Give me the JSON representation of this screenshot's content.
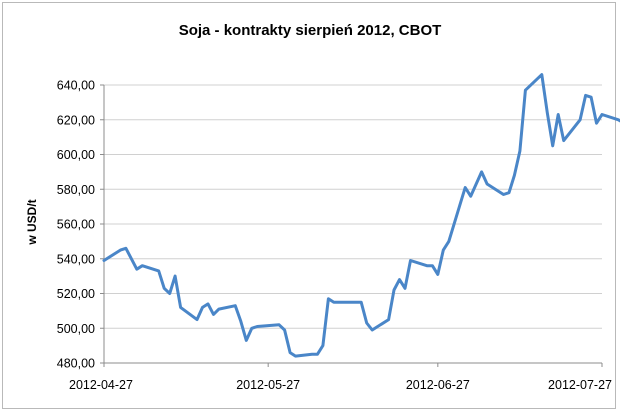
{
  "chart_data": {
    "type": "line",
    "title": "Soja - kontrakty sierpień 2012, CBOT",
    "xlabel": "",
    "ylabel": "w USD/t",
    "ylim": [
      480,
      640
    ],
    "yticks": [
      480,
      500,
      520,
      540,
      560,
      580,
      600,
      620,
      640
    ],
    "ytick_labels": [
      "480,00",
      "500,00",
      "520,00",
      "540,00",
      "560,00",
      "580,00",
      "600,00",
      "620,00",
      "640,00"
    ],
    "xtick_labels": [
      "2012-04-27",
      "2012-05-27",
      "2012-06-27",
      "2012-07-27"
    ],
    "grid": true,
    "legend": "none",
    "color": "#4a86c8",
    "series": [
      {
        "x": [
          "2012-04-27",
          "2012-04-30",
          "2012-05-01",
          "2012-05-02",
          "2012-05-03",
          "2012-05-04",
          "2012-05-07",
          "2012-05-08",
          "2012-05-09",
          "2012-05-10",
          "2012-05-11",
          "2012-05-14",
          "2012-05-15",
          "2012-05-16",
          "2012-05-17",
          "2012-05-18",
          "2012-05-21",
          "2012-05-22",
          "2012-05-23",
          "2012-05-24",
          "2012-05-25",
          "2012-05-29",
          "2012-05-30",
          "2012-05-31",
          "2012-06-01",
          "2012-06-04",
          "2012-06-05",
          "2012-06-06",
          "2012-06-07",
          "2012-06-08",
          "2012-06-11",
          "2012-06-12",
          "2012-06-13",
          "2012-06-14",
          "2012-06-15",
          "2012-06-18",
          "2012-06-19",
          "2012-06-20",
          "2012-06-21",
          "2012-06-22",
          "2012-06-25",
          "2012-06-26",
          "2012-06-27",
          "2012-06-28",
          "2012-06-29",
          "2012-07-02",
          "2012-07-03",
          "2012-07-05",
          "2012-07-06",
          "2012-07-09",
          "2012-07-10",
          "2012-07-11",
          "2012-07-12",
          "2012-07-13",
          "2012-07-16",
          "2012-07-17",
          "2012-07-18",
          "2012-07-19",
          "2012-07-20",
          "2012-07-23",
          "2012-07-24",
          "2012-07-25",
          "2012-07-26",
          "2012-07-27",
          "2012-07-30",
          "2012-07-31"
        ],
        "values": [
          539,
          545,
          546,
          540,
          534,
          536,
          533,
          523,
          520,
          530,
          512,
          505,
          512,
          514,
          508,
          511,
          513,
          504,
          493,
          500,
          501,
          502,
          499,
          486,
          484,
          485,
          485,
          490,
          517,
          515,
          515,
          515,
          515,
          503,
          499,
          505,
          522,
          528,
          523,
          539,
          536,
          536,
          531,
          545,
          550,
          581,
          576,
          590,
          583,
          577,
          578,
          588,
          602,
          637,
          646,
          624,
          605,
          623,
          608,
          620,
          634,
          633,
          618,
          623,
          620,
          618
        ]
      }
    ]
  }
}
